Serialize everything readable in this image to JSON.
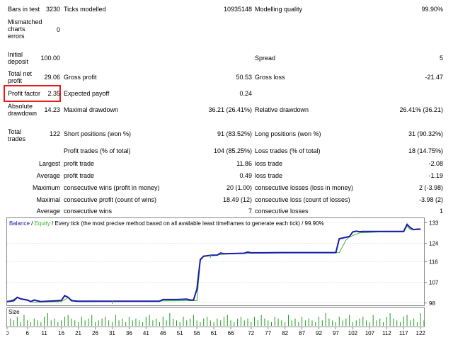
{
  "report": {
    "bars_in_test": {
      "label": "Bars in test",
      "value": "3230"
    },
    "ticks_modelled": {
      "label": "Ticks modelled",
      "value": "10935148"
    },
    "modelling_quality": {
      "label": "Modelling quality",
      "value": "99.90%"
    },
    "mismatched": {
      "label": "Mismatched charts errors",
      "value": "0"
    },
    "initial_deposit": {
      "label": "Initial deposit",
      "value": "100.00"
    },
    "spread": {
      "label": "Spread",
      "value": "5"
    },
    "total_net_profit": {
      "label": "Total net profit",
      "value": "29.06"
    },
    "gross_profit": {
      "label": "Gross profit",
      "value": "50.53"
    },
    "gross_loss": {
      "label": "Gross loss",
      "value": "-21.47"
    },
    "profit_factor": {
      "label": "Profit factor",
      "value": "2.35"
    },
    "expected_payoff": {
      "label": "Expected payoff",
      "value": "0.24"
    },
    "absolute_drawdown": {
      "label": "Absolute drawdown",
      "value": "14.23"
    },
    "maximal_drawdown": {
      "label": "Maximal drawdown",
      "value": "36.21 (26.41%)"
    },
    "relative_drawdown": {
      "label": "Relative drawdown",
      "value": "26.41% (36.21)"
    },
    "total_trades": {
      "label": "Total trades",
      "value": "122"
    },
    "short_positions": {
      "label": "Short positions (won %)",
      "value": "91 (83.52%)"
    },
    "long_positions": {
      "label": "Long positions (won %)",
      "value": "31 (90.32%)"
    },
    "profit_trades": {
      "label": "Profit trades (% of total)",
      "value": "104 (85.25%)"
    },
    "loss_trades": {
      "label": "Loss trades (% of total)",
      "value": "18 (14.75%)"
    },
    "largest": {
      "label": "Largest",
      "profit_label": "profit trade",
      "profit_value": "11.86",
      "loss_label": "loss trade",
      "loss_value": "-2.08"
    },
    "average": {
      "label": "Average",
      "profit_label": "profit trade",
      "profit_value": "0.49",
      "loss_label": "loss trade",
      "loss_value": "-1.19"
    },
    "maximum": {
      "label": "Maximum",
      "profit_label": "consecutive wins (profit in money)",
      "profit_value": "20 (1.00)",
      "loss_label": "consecutive losses (loss in money)",
      "loss_value": "2 (-3.98)"
    },
    "maximal": {
      "label": "Maximal",
      "profit_label": "consecutive profit (count of wins)",
      "profit_value": "18.49 (12)",
      "loss_label": "consecutive loss (count of losses)",
      "loss_value": "-3.98 (2)"
    },
    "average_consec": {
      "label": "Average",
      "profit_label": "consecutive wins",
      "profit_value": "7",
      "loss_label": "consecutive losses",
      "loss_value": "1"
    }
  },
  "chart_data": {
    "type": "line",
    "legend": {
      "balance": "Balance",
      "sep1": " / ",
      "equity": "Equity",
      "text": " / Every tick (the most precise method based on all available least timeframes to generate each tick) / 99.90%"
    },
    "colors": {
      "balance": "#1a1aa8",
      "equity": "#33b833",
      "grid": "#c8c8c8",
      "volume": "#1f9a1f"
    },
    "ylim": [
      97,
      135
    ],
    "yticks": [
      98,
      107,
      116,
      124,
      133
    ],
    "xlim": [
      0,
      123
    ],
    "xticks": [
      0,
      6,
      11,
      16,
      21,
      26,
      31,
      36,
      41,
      46,
      51,
      56,
      61,
      66,
      72,
      77,
      82,
      87,
      92,
      97,
      102,
      107,
      112,
      117,
      122
    ],
    "volume_label": "Size",
    "balance": {
      "x": [
        0,
        2,
        3,
        4,
        6,
        7,
        8,
        10,
        12,
        15,
        16,
        17,
        18,
        19,
        21,
        25,
        30,
        40,
        45,
        46,
        50,
        53,
        54,
        55,
        56,
        57,
        58,
        59,
        60,
        62,
        63,
        64,
        70,
        71,
        72,
        75,
        80,
        85,
        90,
        92,
        93,
        95,
        96,
        97,
        98,
        101,
        102,
        103,
        104,
        105,
        110,
        115,
        116,
        117,
        118,
        119,
        120,
        121,
        122
      ],
      "y": [
        98.6,
        99,
        100.5,
        99.8,
        99.3,
        98.6,
        99.3,
        98.6,
        98.8,
        99,
        99.1,
        101.2,
        100.5,
        99,
        98.8,
        98.8,
        98.8,
        98.8,
        98.8,
        99.5,
        99.5,
        99.7,
        99.3,
        99.3,
        104,
        117,
        118.4,
        118.6,
        118.8,
        118.9,
        119.8,
        119.5,
        119.7,
        120.2,
        119.9,
        119.9,
        120,
        120,
        120,
        120,
        120,
        120,
        120,
        120,
        126,
        127,
        129,
        129.3,
        129.1,
        129.2,
        129.2,
        129.2,
        129.2,
        129.2,
        132.3,
        130.8,
        130,
        130.2,
        130.2
      ]
    },
    "equity": {
      "x": [
        0,
        3,
        6,
        8,
        16,
        18,
        20,
        56,
        57,
        58,
        64,
        70,
        98,
        100,
        101,
        104,
        110,
        117,
        118,
        119,
        122
      ],
      "y": [
        98.4,
        100.3,
        99,
        98.4,
        98.6,
        100.3,
        98.6,
        99,
        116.5,
        118.3,
        119.3,
        119.7,
        120,
        125.5,
        126.8,
        128.6,
        129,
        129,
        131.5,
        130,
        130
      ],
      "dips": [
        {
          "x": 31,
          "y": 98.2
        },
        {
          "x": 60,
          "y": 118.3
        }
      ]
    },
    "volume": [
      4,
      3,
      5,
      2,
      6,
      3,
      2,
      4,
      3,
      2,
      5,
      7,
      3,
      4,
      2,
      3,
      5,
      6,
      4,
      3,
      2,
      5,
      3,
      4,
      6,
      2,
      3,
      4,
      5,
      3,
      2,
      6,
      3,
      4,
      2,
      5,
      3,
      4,
      3,
      2,
      5,
      6,
      3,
      4,
      2,
      5,
      3,
      7,
      4,
      3,
      2,
      5,
      3,
      4,
      6,
      3,
      2,
      4,
      5,
      3,
      2,
      4,
      3,
      5,
      6,
      3,
      2,
      4,
      5,
      3,
      4,
      2,
      5,
      3,
      6,
      4,
      3,
      2,
      5,
      4,
      3,
      2,
      6,
      3,
      4,
      2,
      5,
      3,
      4,
      3,
      2,
      5,
      3,
      7,
      4,
      3,
      2,
      5,
      3,
      4,
      6,
      2,
      3,
      4,
      5,
      3,
      2,
      6,
      3,
      4,
      2,
      5,
      7,
      4,
      3,
      2,
      5,
      6,
      3,
      4,
      2,
      7,
      3
    ]
  }
}
